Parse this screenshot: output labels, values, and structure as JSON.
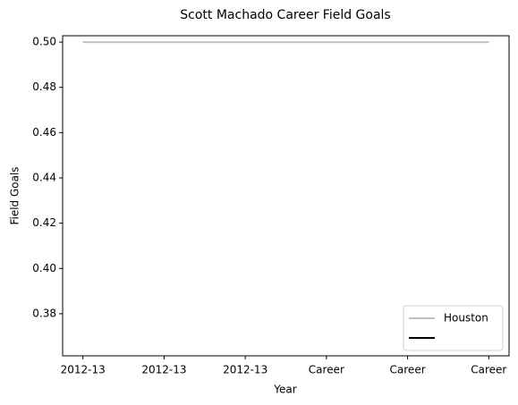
{
  "chart_data": {
    "type": "line",
    "title": "Scott Machado Career Field Goals",
    "xlabel": "Year",
    "ylabel": "Field Goals",
    "categories": [
      "2012-13",
      "2012-13",
      "2012-13",
      "Career",
      "Career",
      "Career"
    ],
    "series": [
      {
        "name": "Houston",
        "color": "#bfbfbf",
        "values": [
          0.5,
          0.5,
          0.5,
          0.5,
          0.5,
          0.5
        ]
      },
      {
        "color": "#000000",
        "values": [
          null,
          null,
          null,
          null,
          null,
          null
        ]
      }
    ],
    "ylim": [
      0.3614,
      0.5028
    ],
    "yticks": [
      0.38,
      {
        "value": 0.4,
        "label": "0.40"
      },
      0.42,
      0.44,
      0.46,
      0.48,
      {
        "value": 0.5,
        "label": "0.50"
      }
    ],
    "legend": "lower right"
  }
}
